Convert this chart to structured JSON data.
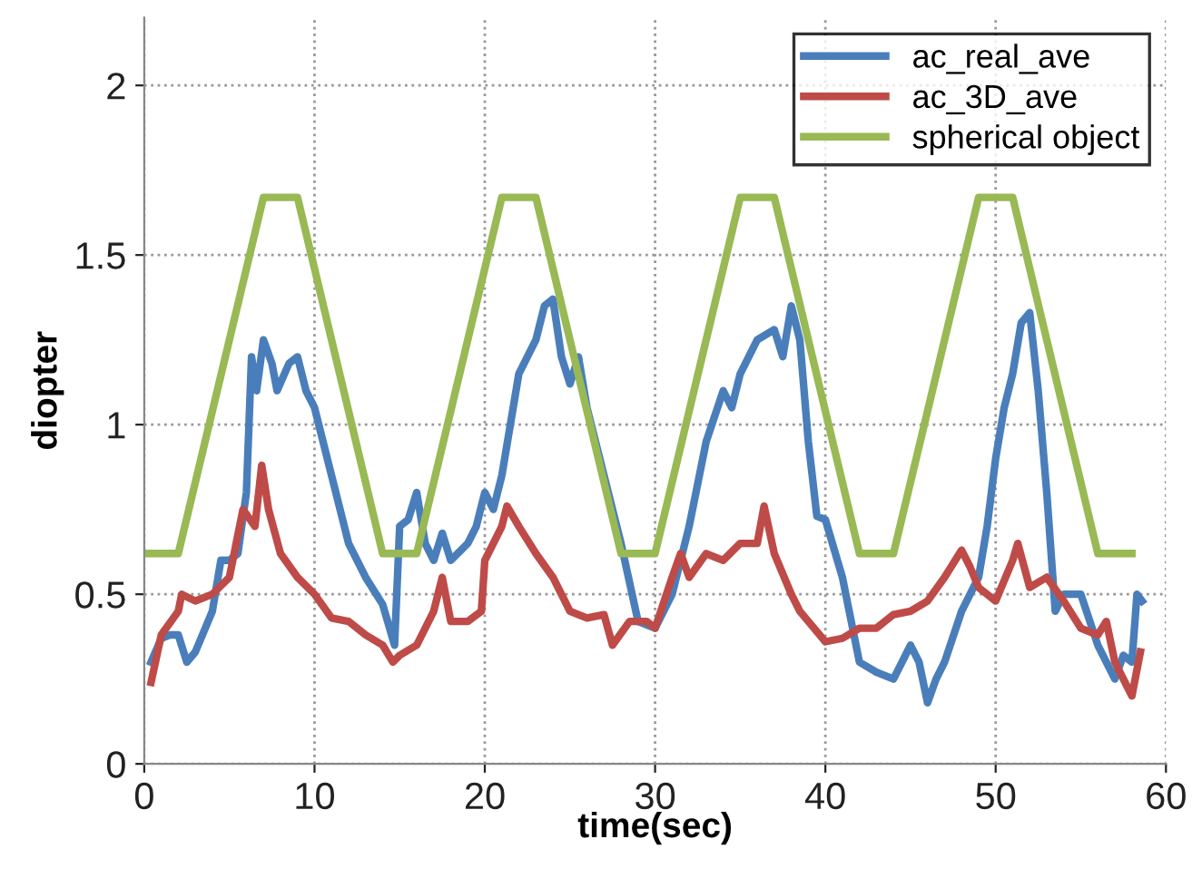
{
  "chart_data": {
    "type": "line",
    "xlabel": "time(sec)",
    "ylabel": "diopter",
    "xlim": [
      0,
      60
    ],
    "xticks": [
      0,
      10,
      20,
      30,
      40,
      50,
      60
    ],
    "ylim": [
      0,
      2.2
    ],
    "yticks": [
      0,
      0.5,
      1,
      1.5,
      2
    ],
    "grid": true,
    "legend": "top right",
    "marker": "none",
    "line_style": "solid",
    "series": [
      {
        "name": "ac_real_ave",
        "color": "#4a7ebb",
        "x": [
          0.4,
          1,
          1.5,
          2,
          2.5,
          3,
          4,
          4.5,
          5,
          5.5,
          6,
          6.3,
          6.6,
          7,
          7.5,
          7.8,
          8.5,
          9,
          9.5,
          10,
          11,
          12,
          13,
          14,
          14.7,
          15,
          15.5,
          16,
          16.5,
          17,
          17.5,
          18,
          19,
          19.5,
          20,
          20.5,
          21,
          22,
          22.5,
          23,
          23.5,
          24,
          24.5,
          25,
          25.5,
          26,
          27,
          28,
          29,
          30,
          31,
          32,
          33,
          34,
          34.5,
          35,
          36,
          37,
          37.5,
          38,
          38.5,
          39,
          39.5,
          40,
          41,
          42,
          43,
          44,
          45,
          45.5,
          46,
          46.5,
          47,
          48,
          49,
          49.5,
          50,
          50.5,
          51,
          51.5,
          52,
          52.5,
          53,
          53.5,
          54,
          55,
          56,
          57,
          57.5,
          58,
          58.3,
          58.6
        ],
        "values": [
          0.3,
          0.37,
          0.38,
          0.38,
          0.3,
          0.33,
          0.45,
          0.6,
          0.6,
          0.62,
          0.8,
          1.2,
          1.1,
          1.25,
          1.18,
          1.1,
          1.18,
          1.2,
          1.1,
          1.05,
          0.85,
          0.65,
          0.55,
          0.47,
          0.35,
          0.7,
          0.72,
          0.8,
          0.65,
          0.6,
          0.68,
          0.6,
          0.65,
          0.7,
          0.8,
          0.75,
          0.85,
          1.15,
          1.2,
          1.25,
          1.35,
          1.37,
          1.2,
          1.12,
          1.2,
          1.05,
          0.85,
          0.65,
          0.42,
          0.4,
          0.5,
          0.7,
          0.95,
          1.1,
          1.05,
          1.15,
          1.25,
          1.28,
          1.2,
          1.35,
          1.25,
          0.95,
          0.73,
          0.72,
          0.55,
          0.3,
          0.27,
          0.25,
          0.35,
          0.3,
          0.18,
          0.25,
          0.3,
          0.45,
          0.55,
          0.7,
          0.9,
          1.05,
          1.15,
          1.3,
          1.33,
          1.1,
          0.8,
          0.45,
          0.5,
          0.5,
          0.35,
          0.25,
          0.32,
          0.3,
          0.5,
          0.48
        ]
      },
      {
        "name": "ac_3D_ave",
        "color": "#be4b48",
        "x": [
          0.4,
          1,
          2,
          2.2,
          3,
          4,
          5,
          5.8,
          6.5,
          6.9,
          7.3,
          8,
          9,
          10,
          11,
          12,
          13,
          14,
          14.6,
          15,
          16,
          17,
          17.5,
          18,
          19,
          19.8,
          20,
          21,
          21.3,
          22,
          23,
          24,
          25,
          26,
          27,
          27.5,
          28.5,
          29.5,
          30,
          31,
          31.5,
          32,
          33,
          34,
          35,
          36,
          36.4,
          37,
          38,
          38.5,
          39,
          40,
          41,
          42,
          43,
          44,
          45,
          46,
          47,
          48,
          48.5,
          49,
          50,
          51,
          51.3,
          52,
          53,
          54,
          55,
          56,
          56.5,
          57,
          58,
          58.5
        ],
        "values": [
          0.24,
          0.38,
          0.45,
          0.5,
          0.48,
          0.5,
          0.55,
          0.75,
          0.7,
          0.88,
          0.75,
          0.62,
          0.55,
          0.5,
          0.43,
          0.42,
          0.38,
          0.35,
          0.3,
          0.32,
          0.35,
          0.45,
          0.55,
          0.42,
          0.42,
          0.45,
          0.6,
          0.7,
          0.76,
          0.7,
          0.62,
          0.55,
          0.45,
          0.43,
          0.44,
          0.35,
          0.42,
          0.42,
          0.4,
          0.55,
          0.62,
          0.55,
          0.62,
          0.6,
          0.65,
          0.65,
          0.76,
          0.62,
          0.5,
          0.45,
          0.42,
          0.36,
          0.37,
          0.4,
          0.4,
          0.44,
          0.45,
          0.48,
          0.55,
          0.63,
          0.58,
          0.52,
          0.48,
          0.6,
          0.65,
          0.52,
          0.55,
          0.48,
          0.4,
          0.38,
          0.42,
          0.3,
          0.2,
          0.33
        ]
      },
      {
        "name": "spherical object",
        "color": "#98b954",
        "x": [
          0,
          2,
          7,
          9,
          14,
          16,
          21,
          23,
          28,
          30,
          35,
          37,
          42,
          44,
          49,
          51,
          56,
          58
        ],
        "values": [
          0.62,
          0.62,
          1.67,
          1.67,
          0.62,
          0.62,
          1.67,
          1.67,
          0.62,
          0.62,
          1.67,
          1.67,
          0.62,
          0.62,
          1.67,
          1.67,
          0.62,
          0.62
        ]
      }
    ]
  }
}
